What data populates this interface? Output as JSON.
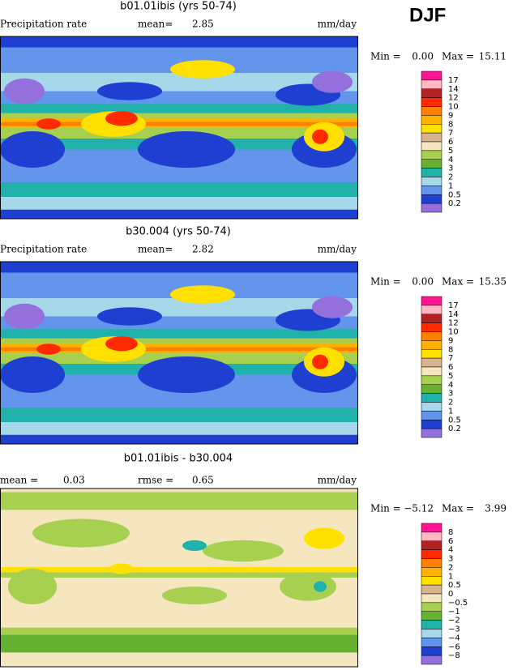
{
  "season": "DJF",
  "panels": [
    {
      "title": "b01.01ibis (yrs 50-74)",
      "left_label": "Precipitation rate",
      "stat_label": "mean=",
      "stat_value": "2.85",
      "units": "mm/day",
      "min_label": "Min =",
      "min_value": "0.00",
      "max_label": "Max =",
      "max_value": "15.11",
      "colorbar": {
        "labels": [
          "17",
          "14",
          "12",
          "10",
          "9",
          "8",
          "7",
          "6",
          "5",
          "4",
          "3",
          "2",
          "1",
          "0.5",
          "0.2"
        ],
        "colors": [
          "#ff1493",
          "#ffb6c1",
          "#b22222",
          "#ff2a00",
          "#ff7f00",
          "#ffb000",
          "#ffe000",
          "#d8b48c",
          "#f5e6c0",
          "#a8d050",
          "#66b032",
          "#20b2aa",
          "#a6d8ea",
          "#6495ed",
          "#1f3fd0",
          "#9370db"
        ]
      }
    },
    {
      "title": "b30.004 (yrs 50-74)",
      "left_label": "Precipitation rate",
      "stat_label": "mean=",
      "stat_value": "2.82",
      "units": "mm/day",
      "min_label": "Min =",
      "min_value": "0.00",
      "max_label": "Max =",
      "max_value": "15.35",
      "colorbar": {
        "labels": [
          "17",
          "14",
          "12",
          "10",
          "9",
          "8",
          "7",
          "6",
          "5",
          "4",
          "3",
          "2",
          "1",
          "0.5",
          "0.2"
        ],
        "colors": [
          "#ff1493",
          "#ffb6c1",
          "#b22222",
          "#ff2a00",
          "#ff7f00",
          "#ffb000",
          "#ffe000",
          "#d8b48c",
          "#f5e6c0",
          "#a8d050",
          "#66b032",
          "#20b2aa",
          "#a6d8ea",
          "#6495ed",
          "#1f3fd0",
          "#9370db"
        ]
      }
    },
    {
      "title": "b01.01ibis - b30.004",
      "left_label": "mean =",
      "left_value": "0.03",
      "stat_label": "rmse =",
      "stat_value": "0.65",
      "units": "mm/day",
      "min_label": "Min =",
      "min_value": "−5.12",
      "max_label": "Max =",
      "max_value": "3.99",
      "colorbar": {
        "labels": [
          "8",
          "6",
          "4",
          "3",
          "2",
          "1",
          "0.5",
          "0",
          "−0.5",
          "−1",
          "−2",
          "−3",
          "−4",
          "−6",
          "−8"
        ],
        "colors": [
          "#ff1493",
          "#ffb6c1",
          "#b22222",
          "#ff2a00",
          "#ff7f00",
          "#ffb000",
          "#ffe000",
          "#d8b48c",
          "#f5e6c0",
          "#a8d050",
          "#66b032",
          "#20b2aa",
          "#a6d8ea",
          "#6495ed",
          "#1f3fd0",
          "#9370db"
        ]
      }
    }
  ]
}
